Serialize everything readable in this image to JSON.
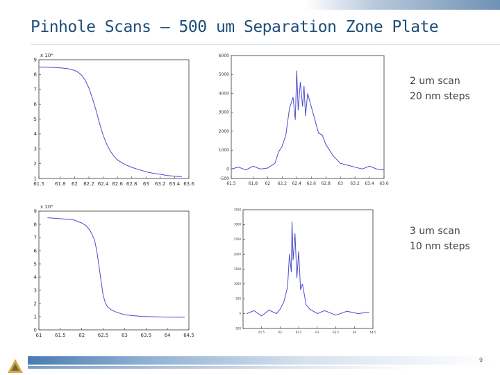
{
  "slide": {
    "title": "Pinhole Scans – 500 um Separation Zone Plate",
    "page_number": "9",
    "notes": [
      {
        "line1": "2 um scan",
        "line2": "20 nm steps"
      },
      {
        "line1": "3 um scan",
        "line2": "10 nm steps"
      }
    ],
    "colors": {
      "title": "#1f4e79",
      "series": "#4b4bd0",
      "accent": "#4a7bb0"
    }
  },
  "chart_data": [
    {
      "type": "line",
      "exponent_label": "x 10⁴",
      "xlim": [
        61.5,
        63.6
      ],
      "ylim": [
        1,
        9
      ],
      "xticks": [
        "61.5",
        "61.8",
        "62",
        "62.2",
        "62.4",
        "62.6",
        "62.8",
        "63",
        "63.2",
        "63.4",
        "63.6"
      ],
      "xtick_values": [
        61.5,
        61.8,
        62,
        62.2,
        62.4,
        62.6,
        62.8,
        63,
        63.2,
        63.4,
        63.6
      ],
      "yticks": [
        "1",
        "2",
        "3",
        "4",
        "5",
        "6",
        "7",
        "8",
        "9"
      ],
      "ytick_values": [
        1,
        2,
        3,
        4,
        5,
        6,
        7,
        8,
        9
      ],
      "series": [
        {
          "x": [
            61.5,
            61.6,
            61.7,
            61.8,
            61.9,
            62.0,
            62.05,
            62.1,
            62.15,
            62.2,
            62.25,
            62.3,
            62.35,
            62.4,
            62.45,
            62.5,
            62.55,
            62.6,
            62.7,
            62.8,
            62.9,
            63.0,
            63.1,
            63.2,
            63.3,
            63.4,
            63.5
          ],
          "y": [
            8.5,
            8.5,
            8.48,
            8.45,
            8.4,
            8.28,
            8.15,
            7.95,
            7.6,
            7.1,
            6.4,
            5.6,
            4.7,
            3.9,
            3.3,
            2.85,
            2.5,
            2.25,
            1.95,
            1.75,
            1.6,
            1.45,
            1.35,
            1.28,
            1.2,
            1.15,
            1.12
          ]
        }
      ]
    },
    {
      "type": "line",
      "xlim": [
        61.5,
        63.6
      ],
      "ylim": [
        -500,
        6000
      ],
      "xticks": [
        "61.5",
        "61.8",
        "62",
        "62.2",
        "62.4",
        "62.6",
        "62.8",
        "63",
        "63.2",
        "63.4",
        "63.6"
      ],
      "xtick_values": [
        61.5,
        61.8,
        62,
        62.2,
        62.4,
        62.6,
        62.8,
        63,
        63.2,
        63.4,
        63.6
      ],
      "yticks": [
        "-500",
        "0",
        "1000",
        "2000",
        "3000",
        "4000",
        "5000",
        "6000"
      ],
      "ytick_values": [
        -500,
        0,
        1000,
        2000,
        3000,
        4000,
        5000,
        6000
      ],
      "series": [
        {
          "x": [
            61.5,
            61.6,
            61.7,
            61.8,
            61.9,
            62.0,
            62.1,
            62.15,
            62.2,
            62.25,
            62.3,
            62.35,
            62.38,
            62.4,
            62.42,
            62.45,
            62.48,
            62.5,
            62.52,
            62.55,
            62.6,
            62.65,
            62.7,
            62.75,
            62.8,
            62.9,
            63.0,
            63.1,
            63.2,
            63.3,
            63.4,
            63.5,
            63.6
          ],
          "y": [
            0,
            100,
            -50,
            150,
            0,
            50,
            300,
            900,
            1200,
            1800,
            3200,
            3800,
            2600,
            5200,
            3100,
            4600,
            3300,
            4400,
            2800,
            4000,
            3300,
            2600,
            1900,
            1800,
            1300,
            700,
            300,
            200,
            100,
            0,
            150,
            0,
            -50
          ]
        }
      ]
    },
    {
      "type": "line",
      "exponent_label": "x 10⁴",
      "xlim": [
        61,
        64.5
      ],
      "ylim": [
        0,
        9
      ],
      "xticks": [
        "61",
        "61.5",
        "62",
        "62.5",
        "63",
        "63.5",
        "64",
        "64.5"
      ],
      "xtick_values": [
        61,
        61.5,
        62,
        62.5,
        63,
        63.5,
        64,
        64.5
      ],
      "yticks": [
        "0",
        "1",
        "2",
        "3",
        "4",
        "5",
        "6",
        "7",
        "8",
        "9"
      ],
      "ytick_values": [
        0,
        1,
        2,
        3,
        4,
        5,
        6,
        7,
        8,
        9
      ],
      "series": [
        {
          "x": [
            61.2,
            61.4,
            61.6,
            61.8,
            62.0,
            62.1,
            62.2,
            62.3,
            62.35,
            62.4,
            62.45,
            62.5,
            62.55,
            62.6,
            62.7,
            62.8,
            62.9,
            63.0,
            63.2,
            63.4,
            63.6,
            63.8,
            64.0,
            64.2,
            64.4
          ],
          "y": [
            8.5,
            8.45,
            8.4,
            8.35,
            8.1,
            7.9,
            7.5,
            6.8,
            6.0,
            4.9,
            3.7,
            2.6,
            2.05,
            1.75,
            1.5,
            1.35,
            1.25,
            1.15,
            1.08,
            1.02,
            1.0,
            0.98,
            0.97,
            0.96,
            0.95
          ]
        }
      ]
    },
    {
      "type": "line",
      "xlim": [
        61,
        64.5
      ],
      "ylim": [
        -500,
        3500
      ],
      "xticks": [
        "61.5",
        "62",
        "62.5",
        "63",
        "63.5",
        "64",
        "64.5"
      ],
      "xtick_values": [
        61.5,
        62,
        62.5,
        63,
        63.5,
        64,
        64.5
      ],
      "yticks": [
        "-500",
        "0",
        "500",
        "1000",
        "1500",
        "2000",
        "2500",
        "3000",
        "3500"
      ],
      "ytick_values": [
        -500,
        0,
        500,
        1000,
        1500,
        2000,
        2500,
        3000,
        3500
      ],
      "series": [
        {
          "x": [
            61.1,
            61.3,
            61.5,
            61.7,
            61.9,
            62.0,
            62.1,
            62.2,
            62.25,
            62.3,
            62.32,
            62.35,
            62.4,
            62.45,
            62.5,
            62.55,
            62.6,
            62.7,
            62.8,
            63.0,
            63.2,
            63.5,
            63.8,
            64.1,
            64.4
          ],
          "y": [
            0,
            100,
            -80,
            120,
            0,
            150,
            400,
            900,
            2000,
            1400,
            3100,
            1800,
            2700,
            1200,
            2100,
            800,
            1000,
            300,
            150,
            0,
            100,
            -50,
            80,
            0,
            50
          ]
        }
      ]
    }
  ]
}
